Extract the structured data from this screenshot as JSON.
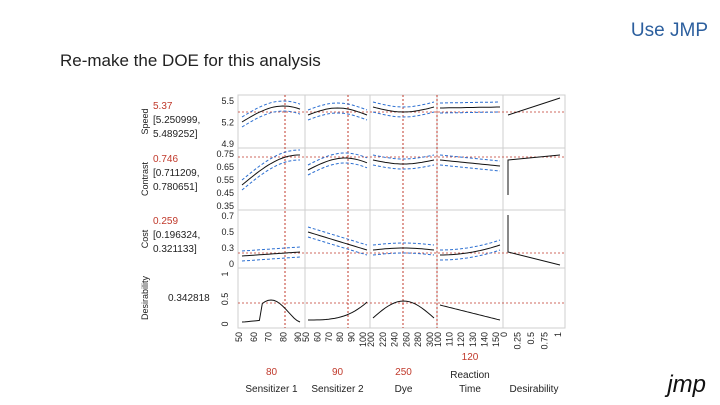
{
  "header": {
    "title": "Use JMP",
    "subtitle": "Re-make the DOE for this analysis"
  },
  "logo": {
    "text": "jmp"
  },
  "colors": {
    "red": "#c0392b",
    "blue": "#2c6fd1",
    "accent": "#2c5f9e"
  },
  "responses": [
    {
      "label": "Speed",
      "value": "5.37",
      "ci_low": "[5.250999,",
      "ci_high": "5.489252]",
      "ticks": [
        "5.5",
        "5.2",
        "4.9"
      ]
    },
    {
      "label": "Contrast",
      "value": "0.746",
      "ci_low": "[0.711209,",
      "ci_high": "0.780651]",
      "ticks": [
        "0.75",
        "0.65",
        "0.55",
        "0.45",
        "0.35"
      ]
    },
    {
      "label": "Cost",
      "value": "0.259",
      "ci_low": "[0.196324,",
      "ci_high": "0.321133]",
      "ticks": [
        "0.7",
        "0.5",
        "0.3",
        "0"
      ]
    },
    {
      "label": "Desirability",
      "value": "0.342818",
      "ci_low": "",
      "ci_high": "",
      "ticks": [
        "1",
        "0.5",
        "0"
      ]
    }
  ],
  "factors": [
    {
      "name": "Sensitizer 1",
      "value": "80",
      "ticks": [
        "50",
        "60",
        "70",
        "80",
        "90"
      ]
    },
    {
      "name": "Sensitizer 2",
      "value": "90",
      "ticks": [
        "50",
        "60",
        "70",
        "80",
        "90",
        "100"
      ]
    },
    {
      "name": "Dye",
      "value": "250",
      "ticks": [
        "200",
        "220",
        "240",
        "260",
        "280",
        "300"
      ]
    },
    {
      "name": "Reaction Time",
      "name_line1": "Reaction",
      "name_line2": "Time",
      "value": "120",
      "ticks": [
        "100",
        "110",
        "120",
        "130",
        "140",
        "150"
      ]
    },
    {
      "name": "Desirability",
      "value": "",
      "ticks": [
        "0",
        "0.25",
        "0.5",
        "0.75",
        "1"
      ]
    }
  ]
}
